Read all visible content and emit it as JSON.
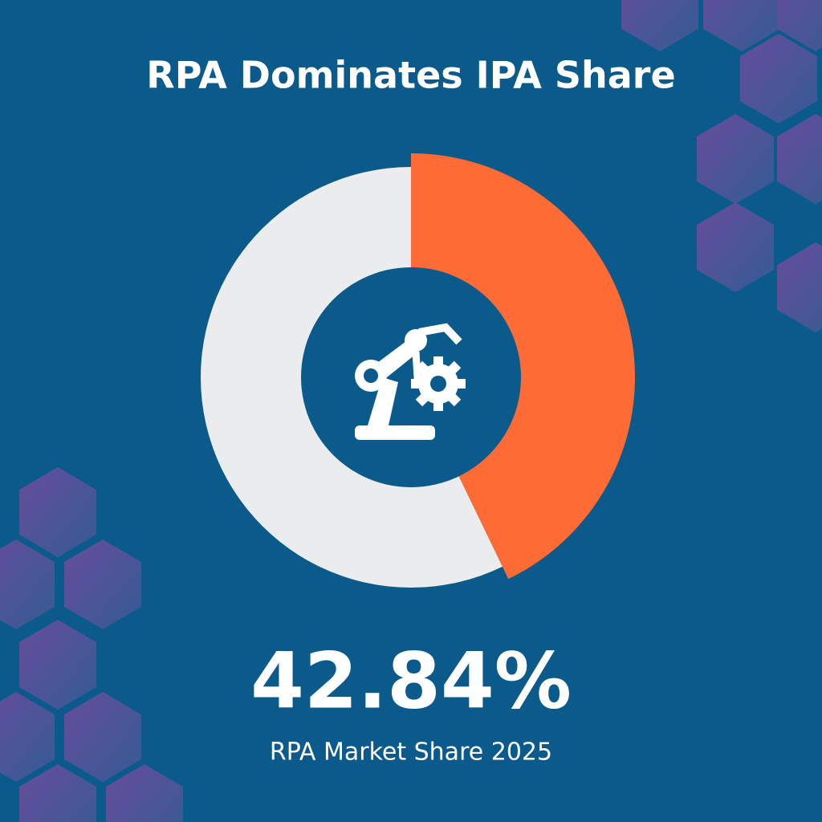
{
  "chart_data": {
    "type": "donut",
    "title": "RPA Dominates IPA Share",
    "values": [
      42.84,
      57.16
    ],
    "value_labels": [
      "42.84%",
      null
    ],
    "colors": [
      "#ff6b35",
      "#ebecee"
    ],
    "caption": "RPA Market Share 2025"
  }
}
